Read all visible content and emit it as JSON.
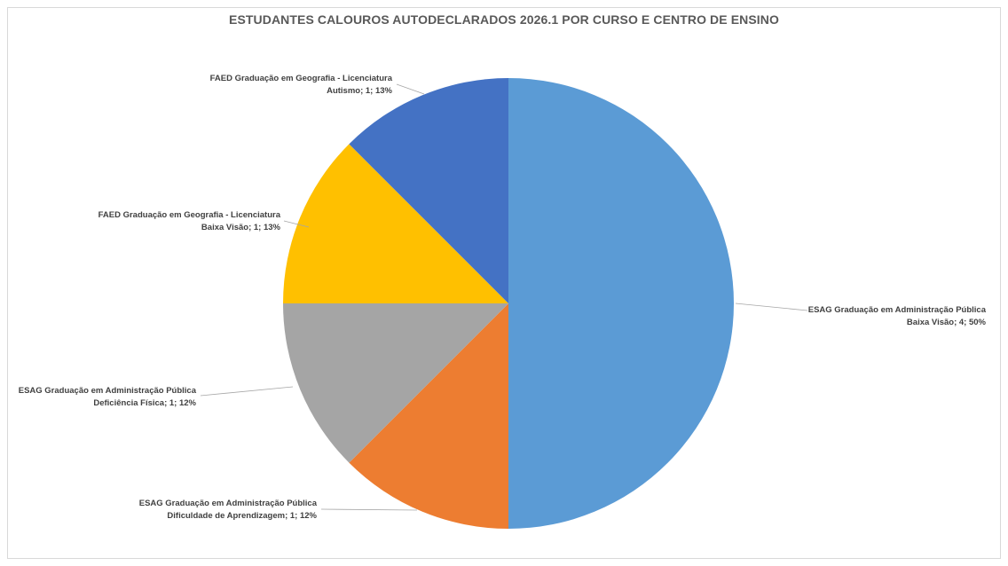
{
  "chart_data": {
    "type": "pie",
    "title": "ESTUDANTES CALOUROS AUTODECLARADOS 2026.1 POR CURSO E CENTRO DE ENSINO",
    "slices": [
      {
        "line1": "ESAG Graduação em Administração Pública",
        "line2": "Baixa Visão; 4; 50%",
        "value": 4,
        "percent": "50%",
        "color": "#5B9BD5"
      },
      {
        "line1": "ESAG Graduação em Administração Pública",
        "line2": "Dificuldade de Aprendizagem; 1; 12%",
        "value": 1,
        "percent": "12%",
        "color": "#ED7D31"
      },
      {
        "line1": "ESAG Graduação em Administração Pública",
        "line2": "Deficiência Física; 1; 12%",
        "value": 1,
        "percent": "12%",
        "color": "#A5A5A5"
      },
      {
        "line1": "FAED Graduação em Geografia - Licenciatura",
        "line2": "Baixa Visão; 1; 13%",
        "value": 1,
        "percent": "13%",
        "color": "#FFC000"
      },
      {
        "line1": "FAED Graduação em Geografia - Licenciatura",
        "line2": "Autismo; 1; 13%",
        "value": 1,
        "percent": "13%",
        "color": "#4472C4"
      }
    ],
    "legend": "none"
  }
}
